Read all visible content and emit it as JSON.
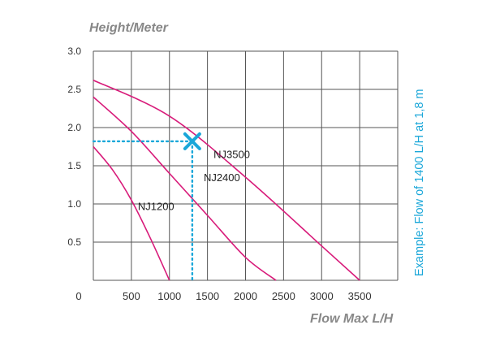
{
  "chart_data": {
    "type": "line",
    "ylabel": "Height/Meter",
    "xlabel": "Flow Max L/H",
    "x_tick_labels": [
      "0",
      "500",
      "1000",
      "1500",
      "2000",
      "2500",
      "3000",
      "3500"
    ],
    "y_tick_labels": [
      "0.5",
      "1.0",
      "1.5",
      "2.0",
      "2.5",
      "3.0"
    ],
    "xlim": [
      0,
      4000
    ],
    "ylim": [
      0,
      3.0
    ],
    "grid": true,
    "series": [
      {
        "name": "NJ1200",
        "x": [
          0,
          250,
          500,
          750,
          1000
        ],
        "y": [
          1.75,
          1.45,
          1.05,
          0.55,
          0.0
        ]
      },
      {
        "name": "NJ2400",
        "x": [
          0,
          500,
          1000,
          1500,
          2000,
          2400
        ],
        "y": [
          2.4,
          1.95,
          1.4,
          0.85,
          0.3,
          0.0
        ]
      },
      {
        "name": "NJ3500",
        "x": [
          0,
          1000,
          2000,
          3000,
          3500
        ],
        "y": [
          2.62,
          2.15,
          1.35,
          0.45,
          0.0
        ]
      }
    ],
    "example": {
      "text": "Example: Flow of 1400 L/H at 1,8 m",
      "x": 1300,
      "y": 1.82,
      "color": "#1aa7d9"
    },
    "colors": {
      "curve": "#d81b7a",
      "grid": "#555555",
      "example": "#1aa7d9",
      "label": "#888888"
    }
  }
}
